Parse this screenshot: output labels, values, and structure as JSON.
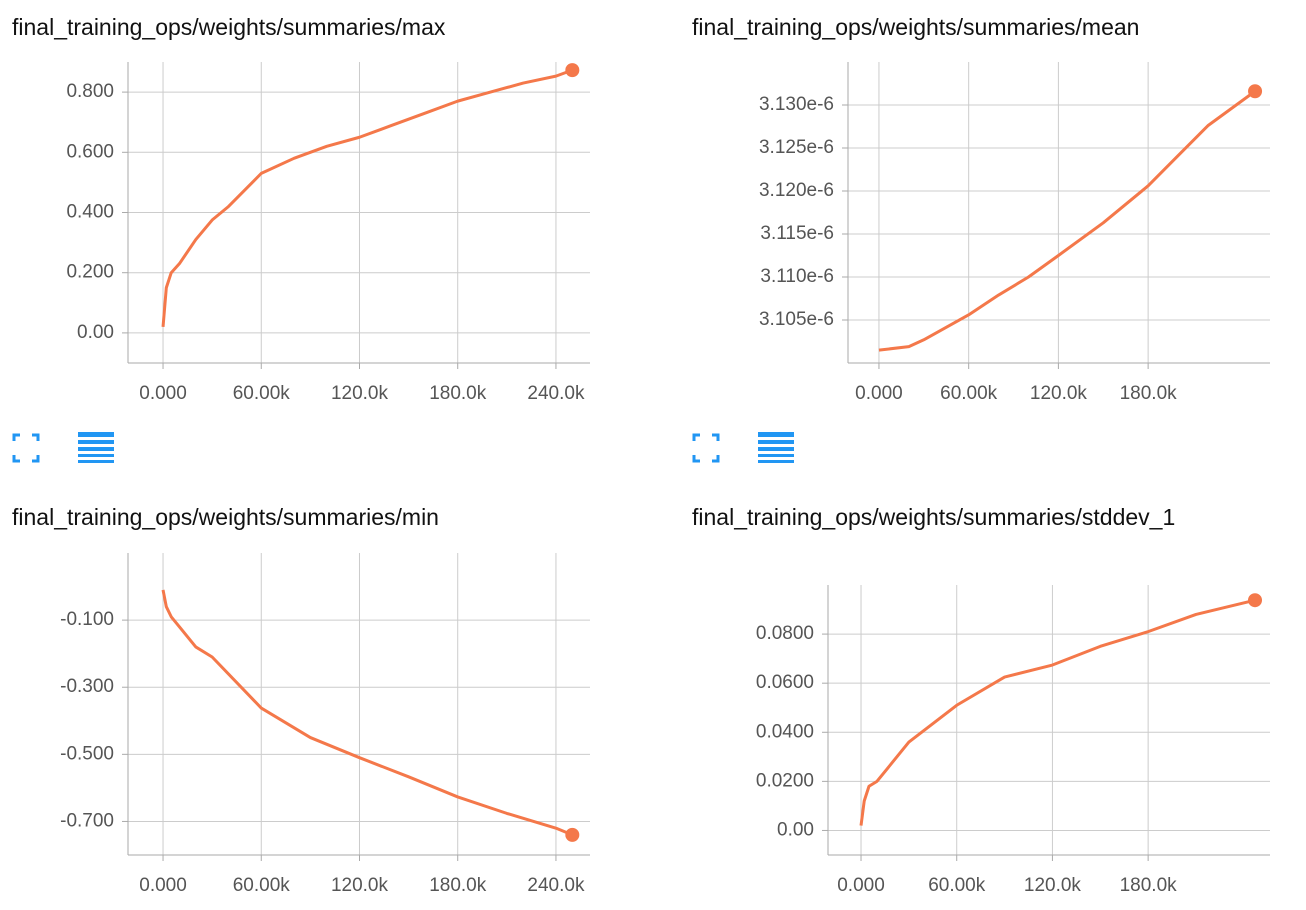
{
  "chart_data": [
    {
      "type": "line",
      "title": "final_training_ops/weights/summaries/max",
      "color": "#f4784a",
      "x": [
        0,
        2000,
        5000,
        10000,
        20000,
        30000,
        40000,
        60000,
        80000,
        100000,
        120000,
        140000,
        160000,
        180000,
        200000,
        220000,
        240000,
        250000
      ],
      "values": [
        0.02,
        0.15,
        0.2,
        0.23,
        0.31,
        0.375,
        0.42,
        0.53,
        0.58,
        0.62,
        0.65,
        0.69,
        0.73,
        0.77,
        0.8,
        0.83,
        0.853,
        0.873
      ],
      "xlim": [
        -21400,
        260800
      ],
      "ylim": [
        -0.1,
        0.9
      ],
      "xticks": [
        {
          "value": 0,
          "label": "0.000"
        },
        {
          "value": 60000,
          "label": "60.00k"
        },
        {
          "value": 120000,
          "label": "120.0k"
        },
        {
          "value": 180000,
          "label": "180.0k"
        },
        {
          "value": 240000,
          "label": "240.0k"
        }
      ],
      "yticks": [
        {
          "value": 0,
          "label": "0.00"
        },
        {
          "value": 0.2,
          "label": "0.200"
        },
        {
          "value": 0.4,
          "label": "0.400"
        },
        {
          "value": 0.6,
          "label": "0.600"
        },
        {
          "value": 0.8,
          "label": "0.800"
        }
      ],
      "grid": true
    },
    {
      "type": "line",
      "title": "final_training_ops/weights/summaries/mean",
      "color": "#f4784a",
      "x": [
        0,
        20000,
        30000,
        60000,
        80000,
        100000,
        120000,
        150000,
        180000,
        200000,
        220000,
        251500
      ],
      "values": [
        3.1015e-06,
        3.1019e-06,
        3.1027e-06,
        3.1056e-06,
        3.1079e-06,
        3.11e-06,
        3.1125e-06,
        3.1163e-06,
        3.1206e-06,
        3.1241e-06,
        3.1276e-06,
        3.1316e-06
      ],
      "xlim": [
        -20700,
        261500
      ],
      "ylim": [
        3.1e-06,
        3.135e-06
      ],
      "xticks": [
        {
          "value": 0,
          "label": "0.000"
        },
        {
          "value": 60000,
          "label": "60.00k"
        },
        {
          "value": 120000,
          "label": "120.0k"
        },
        {
          "value": 180000,
          "label": "180.0k"
        }
      ],
      "yticks": [
        {
          "value": 3.105e-06,
          "label": "3.105e-6"
        },
        {
          "value": 3.11e-06,
          "label": "3.110e-6"
        },
        {
          "value": 3.115e-06,
          "label": "3.115e-6"
        },
        {
          "value": 3.12e-06,
          "label": "3.120e-6"
        },
        {
          "value": 3.125e-06,
          "label": "3.125e-6"
        },
        {
          "value": 3.13e-06,
          "label": "3.130e-6"
        }
      ],
      "grid": true
    },
    {
      "type": "line",
      "title": "final_training_ops/weights/summaries/min",
      "color": "#f4784a",
      "x": [
        0,
        2000,
        5000,
        10000,
        20000,
        30000,
        60000,
        90000,
        120000,
        150000,
        180000,
        210000,
        240000,
        250000
      ],
      "values": [
        -0.01,
        -0.06,
        -0.09,
        -0.12,
        -0.18,
        -0.21,
        -0.362,
        -0.45,
        -0.51,
        -0.567,
        -0.627,
        -0.676,
        -0.72,
        -0.74
      ],
      "xlim": [
        -21400,
        260800
      ],
      "ylim": [
        -0.8,
        0.1
      ],
      "xticks": [
        {
          "value": 0,
          "label": "0.000"
        },
        {
          "value": 60000,
          "label": "60.00k"
        },
        {
          "value": 120000,
          "label": "120.0k"
        },
        {
          "value": 180000,
          "label": "180.0k"
        },
        {
          "value": 240000,
          "label": "240.0k"
        }
      ],
      "yticks": [
        {
          "value": -0.1,
          "label": "-0.100"
        },
        {
          "value": -0.3,
          "label": "-0.300"
        },
        {
          "value": -0.5,
          "label": "-0.500"
        },
        {
          "value": -0.7,
          "label": "-0.700"
        }
      ],
      "grid": true
    },
    {
      "type": "line",
      "title": "final_training_ops/weights/summaries/stddev_1",
      "color": "#f4784a",
      "x": [
        0,
        2000,
        5000,
        10000,
        20000,
        30000,
        60000,
        90000,
        120000,
        150000,
        180000,
        210000,
        247000
      ],
      "values": [
        0.002,
        0.012,
        0.018,
        0.02,
        0.028,
        0.036,
        0.051,
        0.0625,
        0.0674,
        0.075,
        0.081,
        0.088,
        0.0938
      ],
      "xlim": [
        -20700,
        256400
      ],
      "ylim": [
        -0.01,
        0.1
      ],
      "xticks": [
        {
          "value": 0,
          "label": "0.000"
        },
        {
          "value": 60000,
          "label": "60.00k"
        },
        {
          "value": 120000,
          "label": "120.0k"
        },
        {
          "value": 180000,
          "label": "180.0k"
        }
      ],
      "yticks": [
        {
          "value": 0,
          "label": "0.00"
        },
        {
          "value": 0.02,
          "label": "0.0200"
        },
        {
          "value": 0.04,
          "label": "0.0400"
        },
        {
          "value": 0.06,
          "label": "0.0600"
        },
        {
          "value": 0.08,
          "label": "0.0800"
        }
      ],
      "grid": true
    }
  ]
}
